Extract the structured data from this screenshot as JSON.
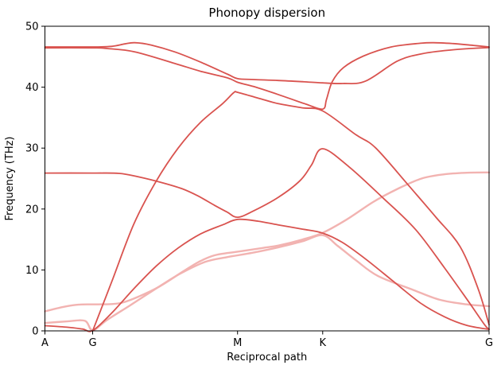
{
  "chart_data": {
    "type": "line",
    "title": "Phonopy dispersion",
    "xlabel": "Reciprocal path",
    "ylabel": "Frequency (THz)",
    "ylim": [
      0,
      50
    ],
    "grid": false,
    "legend": "none",
    "y_ticks": [
      0,
      10,
      20,
      30,
      40,
      50
    ],
    "x_ticks": [
      {
        "pos": 0.0,
        "label": "A"
      },
      {
        "pos": 0.1075,
        "label": "G"
      },
      {
        "pos": 0.4337,
        "label": "M"
      },
      {
        "pos": 0.6254,
        "label": "K"
      },
      {
        "pos": 1.0,
        "label": "G"
      }
    ],
    "colors": {
      "band_dark": "#d9534f",
      "band_light": "#f2b3b1",
      "axis": "#000000",
      "text": "#000000",
      "background": "#ffffff"
    },
    "series": [
      {
        "name": "band-acoustic-1",
        "shade": "light",
        "points": [
          [
            0,
            3.2
          ],
          [
            0.04,
            3.9
          ],
          [
            0.075,
            4.3
          ],
          [
            0.1075,
            4.35
          ],
          [
            0.15,
            4.4
          ],
          [
            0.175,
            4.65
          ],
          [
            0.21,
            5.6
          ],
          [
            0.256,
            7.2
          ],
          [
            0.31,
            9.7
          ],
          [
            0.346,
            11.3
          ],
          [
            0.382,
            12.4
          ],
          [
            0.434,
            13.0
          ],
          [
            0.49,
            13.6
          ],
          [
            0.525,
            14.0
          ],
          [
            0.58,
            15.0
          ],
          [
            0.6254,
            16.1
          ],
          [
            0.68,
            18.3
          ],
          [
            0.74,
            21.2
          ],
          [
            0.794,
            23.3
          ],
          [
            0.848,
            25.0
          ],
          [
            0.9,
            25.7
          ],
          [
            0.95,
            25.95
          ],
          [
            1,
            26.0
          ]
        ]
      },
      {
        "name": "band-acoustic-2",
        "shade": "light",
        "points": [
          [
            0,
            1.3
          ],
          [
            0.05,
            1.55
          ],
          [
            0.09,
            1.65
          ],
          [
            0.1075,
            0.1
          ],
          [
            0.14,
            1.8
          ],
          [
            0.19,
            4.1
          ],
          [
            0.245,
            6.7
          ],
          [
            0.3,
            9.2
          ],
          [
            0.36,
            11.3
          ],
          [
            0.41,
            12.1
          ],
          [
            0.434,
            12.4
          ],
          [
            0.48,
            13.0
          ],
          [
            0.525,
            13.7
          ],
          [
            0.58,
            14.7
          ],
          [
            0.6254,
            15.7
          ],
          [
            0.66,
            13.9
          ],
          [
            0.7,
            11.6
          ],
          [
            0.75,
            9.0
          ],
          [
            0.83,
            6.7
          ],
          [
            0.889,
            5.1
          ],
          [
            0.95,
            4.35
          ],
          [
            1,
            4.05
          ]
        ]
      },
      {
        "name": "band-acoustic-3",
        "shade": "dark",
        "points": [
          [
            0,
            0.85
          ],
          [
            0.05,
            0.6
          ],
          [
            0.085,
            0.3
          ],
          [
            0.1075,
            0.05
          ],
          [
            0.15,
            2.9
          ],
          [
            0.2,
            6.9
          ],
          [
            0.25,
            10.6
          ],
          [
            0.3,
            13.6
          ],
          [
            0.35,
            15.9
          ],
          [
            0.4,
            17.4
          ],
          [
            0.434,
            18.3
          ],
          [
            0.48,
            18.0
          ],
          [
            0.525,
            17.4
          ],
          [
            0.58,
            16.7
          ],
          [
            0.6254,
            16.05
          ],
          [
            0.67,
            14.5
          ],
          [
            0.72,
            11.9
          ],
          [
            0.78,
            8.4
          ],
          [
            0.845,
            4.6
          ],
          [
            0.9,
            2.3
          ],
          [
            0.95,
            0.9
          ],
          [
            1,
            0.25
          ]
        ]
      },
      {
        "name": "band-la",
        "shade": "dark",
        "points": [
          [
            0.1075,
            0.0
          ],
          [
            0.15,
            8.0
          ],
          [
            0.2,
            17.5
          ],
          [
            0.25,
            24.5
          ],
          [
            0.3,
            30.0
          ],
          [
            0.35,
            34.2
          ],
          [
            0.4,
            37.3
          ],
          [
            0.425,
            39.1
          ],
          [
            0.434,
            39.15
          ],
          [
            0.48,
            38.2
          ],
          [
            0.525,
            37.3
          ],
          [
            0.58,
            36.6
          ],
          [
            0.6254,
            36.1
          ],
          [
            0.7,
            32.2
          ],
          [
            0.745,
            30.0
          ],
          [
            0.822,
            23.6
          ],
          [
            0.881,
            18.6
          ],
          [
            0.935,
            13.8
          ],
          [
            0.975,
            7.0
          ],
          [
            1,
            1.0
          ]
        ]
      },
      {
        "name": "band-mid-optical",
        "shade": "dark",
        "points": [
          [
            0,
            25.9
          ],
          [
            0.1075,
            25.9
          ],
          [
            0.167,
            25.85
          ],
          [
            0.21,
            25.3
          ],
          [
            0.26,
            24.4
          ],
          [
            0.31,
            23.3
          ],
          [
            0.346,
            22.1
          ],
          [
            0.382,
            20.6
          ],
          [
            0.41,
            19.5
          ],
          [
            0.434,
            18.65
          ],
          [
            0.47,
            19.7
          ],
          [
            0.525,
            21.9
          ],
          [
            0.575,
            24.7
          ],
          [
            0.6,
            27.2
          ],
          [
            0.6254,
            29.9
          ],
          [
            0.685,
            26.9
          ],
          [
            0.763,
            21.7
          ],
          [
            0.835,
            16.6
          ],
          [
            0.9,
            10.3
          ],
          [
            0.95,
            5.2
          ],
          [
            0.99,
            1.0
          ],
          [
            1,
            0.3
          ]
        ]
      },
      {
        "name": "band-top-optical-1",
        "shade": "dark",
        "points": [
          [
            0,
            46.6
          ],
          [
            0.1075,
            46.6
          ],
          [
            0.15,
            46.7
          ],
          [
            0.18,
            47.1
          ],
          [
            0.2025,
            47.3
          ],
          [
            0.24,
            46.9
          ],
          [
            0.292,
            45.8
          ],
          [
            0.351,
            44.1
          ],
          [
            0.412,
            42.1
          ],
          [
            0.434,
            41.4
          ],
          [
            0.47,
            41.25
          ],
          [
            0.525,
            41.1
          ],
          [
            0.58,
            40.9
          ],
          [
            0.6254,
            40.7
          ],
          [
            0.67,
            40.6
          ],
          [
            0.722,
            41.0
          ],
          [
            0.794,
            44.3
          ],
          [
            0.85,
            45.5
          ],
          [
            0.914,
            46.1
          ],
          [
            0.97,
            46.4
          ],
          [
            1,
            46.5
          ]
        ]
      },
      {
        "name": "band-top-optical-2",
        "shade": "dark",
        "points": [
          [
            0,
            46.45
          ],
          [
            0.1075,
            46.45
          ],
          [
            0.14,
            46.35
          ],
          [
            0.2025,
            45.8
          ],
          [
            0.292,
            43.9
          ],
          [
            0.351,
            42.6
          ],
          [
            0.412,
            41.5
          ],
          [
            0.434,
            40.8
          ],
          [
            0.47,
            40.1
          ],
          [
            0.525,
            38.8
          ],
          [
            0.588,
            37.2
          ],
          [
            0.6254,
            36.4
          ],
          [
            0.634,
            38.0
          ],
          [
            0.647,
            40.9
          ],
          [
            0.672,
            43.2
          ],
          [
            0.717,
            45.1
          ],
          [
            0.78,
            46.6
          ],
          [
            0.845,
            47.2
          ],
          [
            0.875,
            47.3
          ],
          [
            0.92,
            47.15
          ],
          [
            0.965,
            46.85
          ],
          [
            1,
            46.6
          ]
        ]
      }
    ]
  }
}
